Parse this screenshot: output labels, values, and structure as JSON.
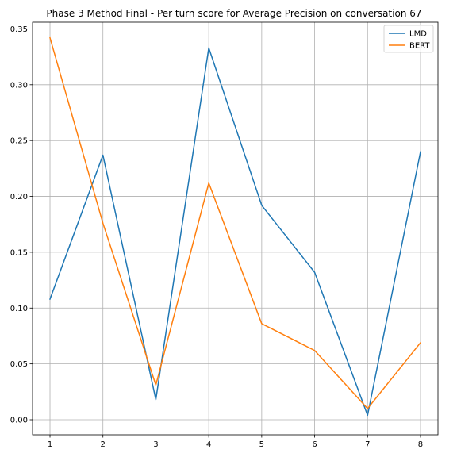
{
  "chart_data": {
    "type": "line",
    "title": "Phase 3 Method Final - Per turn score for Average Precision on conversation 67",
    "xlabel": "",
    "ylabel": "",
    "x": [
      1,
      2,
      3,
      4,
      5,
      6,
      7,
      8
    ],
    "x_ticks": [
      "1",
      "2",
      "3",
      "4",
      "5",
      "6",
      "7",
      "8"
    ],
    "y_ticks": [
      "0.00",
      "0.05",
      "0.10",
      "0.15",
      "0.20",
      "0.25",
      "0.30",
      "0.35"
    ],
    "xlim": [
      0.67,
      8.33
    ],
    "ylim": [
      -0.0135,
      0.356
    ],
    "grid": true,
    "legend_position": "top-right",
    "series": [
      {
        "name": "LMD",
        "color": "#1f77b4",
        "values": [
          0.108,
          0.237,
          0.018,
          0.333,
          0.192,
          0.132,
          0.004,
          0.24
        ]
      },
      {
        "name": "BERT",
        "color": "#ff7f0e",
        "values": [
          0.342,
          0.176,
          0.031,
          0.212,
          0.086,
          0.062,
          0.01,
          0.069
        ]
      }
    ]
  }
}
